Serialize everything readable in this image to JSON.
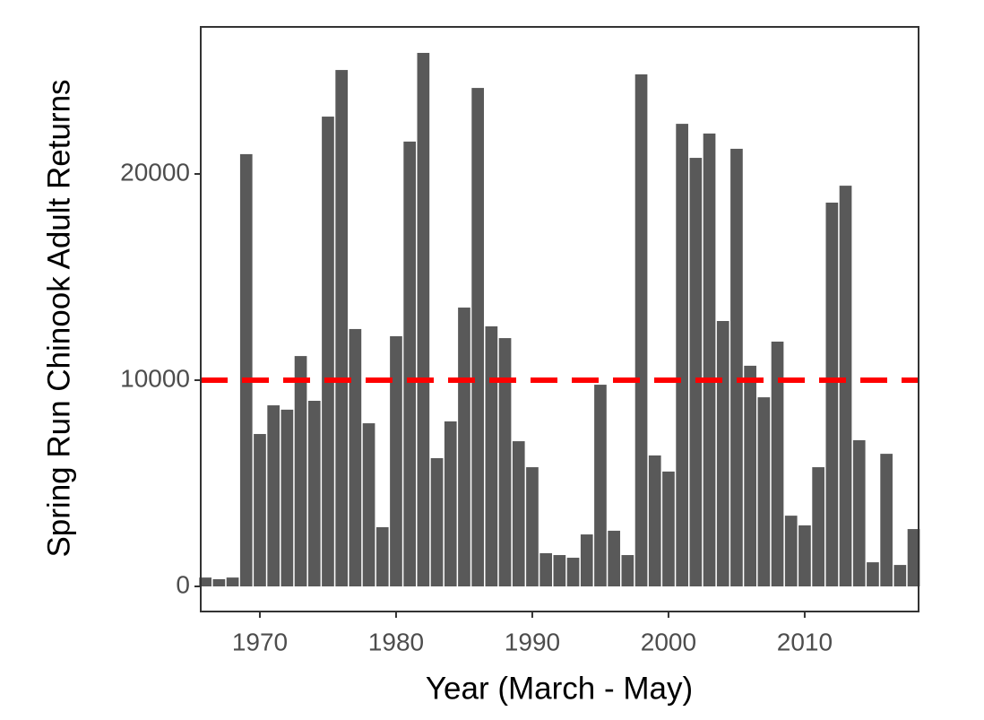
{
  "chart_data": {
    "type": "bar",
    "x_label": "Year (March - May)",
    "y_label": "Spring Run Chinook Adult Returns",
    "x": [
      1966,
      1967,
      1968,
      1969,
      1970,
      1971,
      1972,
      1973,
      1974,
      1975,
      1976,
      1977,
      1978,
      1979,
      1980,
      1981,
      1982,
      1983,
      1984,
      1985,
      1986,
      1987,
      1988,
      1989,
      1990,
      1991,
      1992,
      1993,
      1994,
      1995,
      1996,
      1997,
      1998,
      1999,
      2000,
      2001,
      2002,
      2003,
      2004,
      2005,
      2006,
      2007,
      2008,
      2009,
      2010,
      2011,
      2012,
      2013,
      2014,
      2015,
      2016,
      2017,
      2018
    ],
    "values": [
      430,
      350,
      430,
      20960,
      7390,
      8780,
      8570,
      11170,
      9000,
      22780,
      25040,
      12480,
      7910,
      2870,
      12130,
      21570,
      25870,
      6220,
      8000,
      13520,
      24170,
      12610,
      12040,
      7040,
      5780,
      1610,
      1520,
      1390,
      2520,
      9780,
      2700,
      1520,
      24830,
      6350,
      5570,
      22430,
      20780,
      21960,
      12870,
      21220,
      10700,
      9170,
      11870,
      3430,
      2960,
      5780,
      18610,
      19430,
      7090,
      1170,
      6430,
      1040,
      2780
    ],
    "color": "#595959",
    "reference_line": {
      "value": 10000,
      "color": "#ff0000"
    },
    "xlim": [
      1965.66,
      2018.36
    ],
    "xticks": [
      1970,
      1980,
      1990,
      2000,
      2010
    ],
    "ylim": [
      -1217,
      27130
    ],
    "yticks": [
      0,
      10000,
      20000
    ],
    "grid": false
  }
}
